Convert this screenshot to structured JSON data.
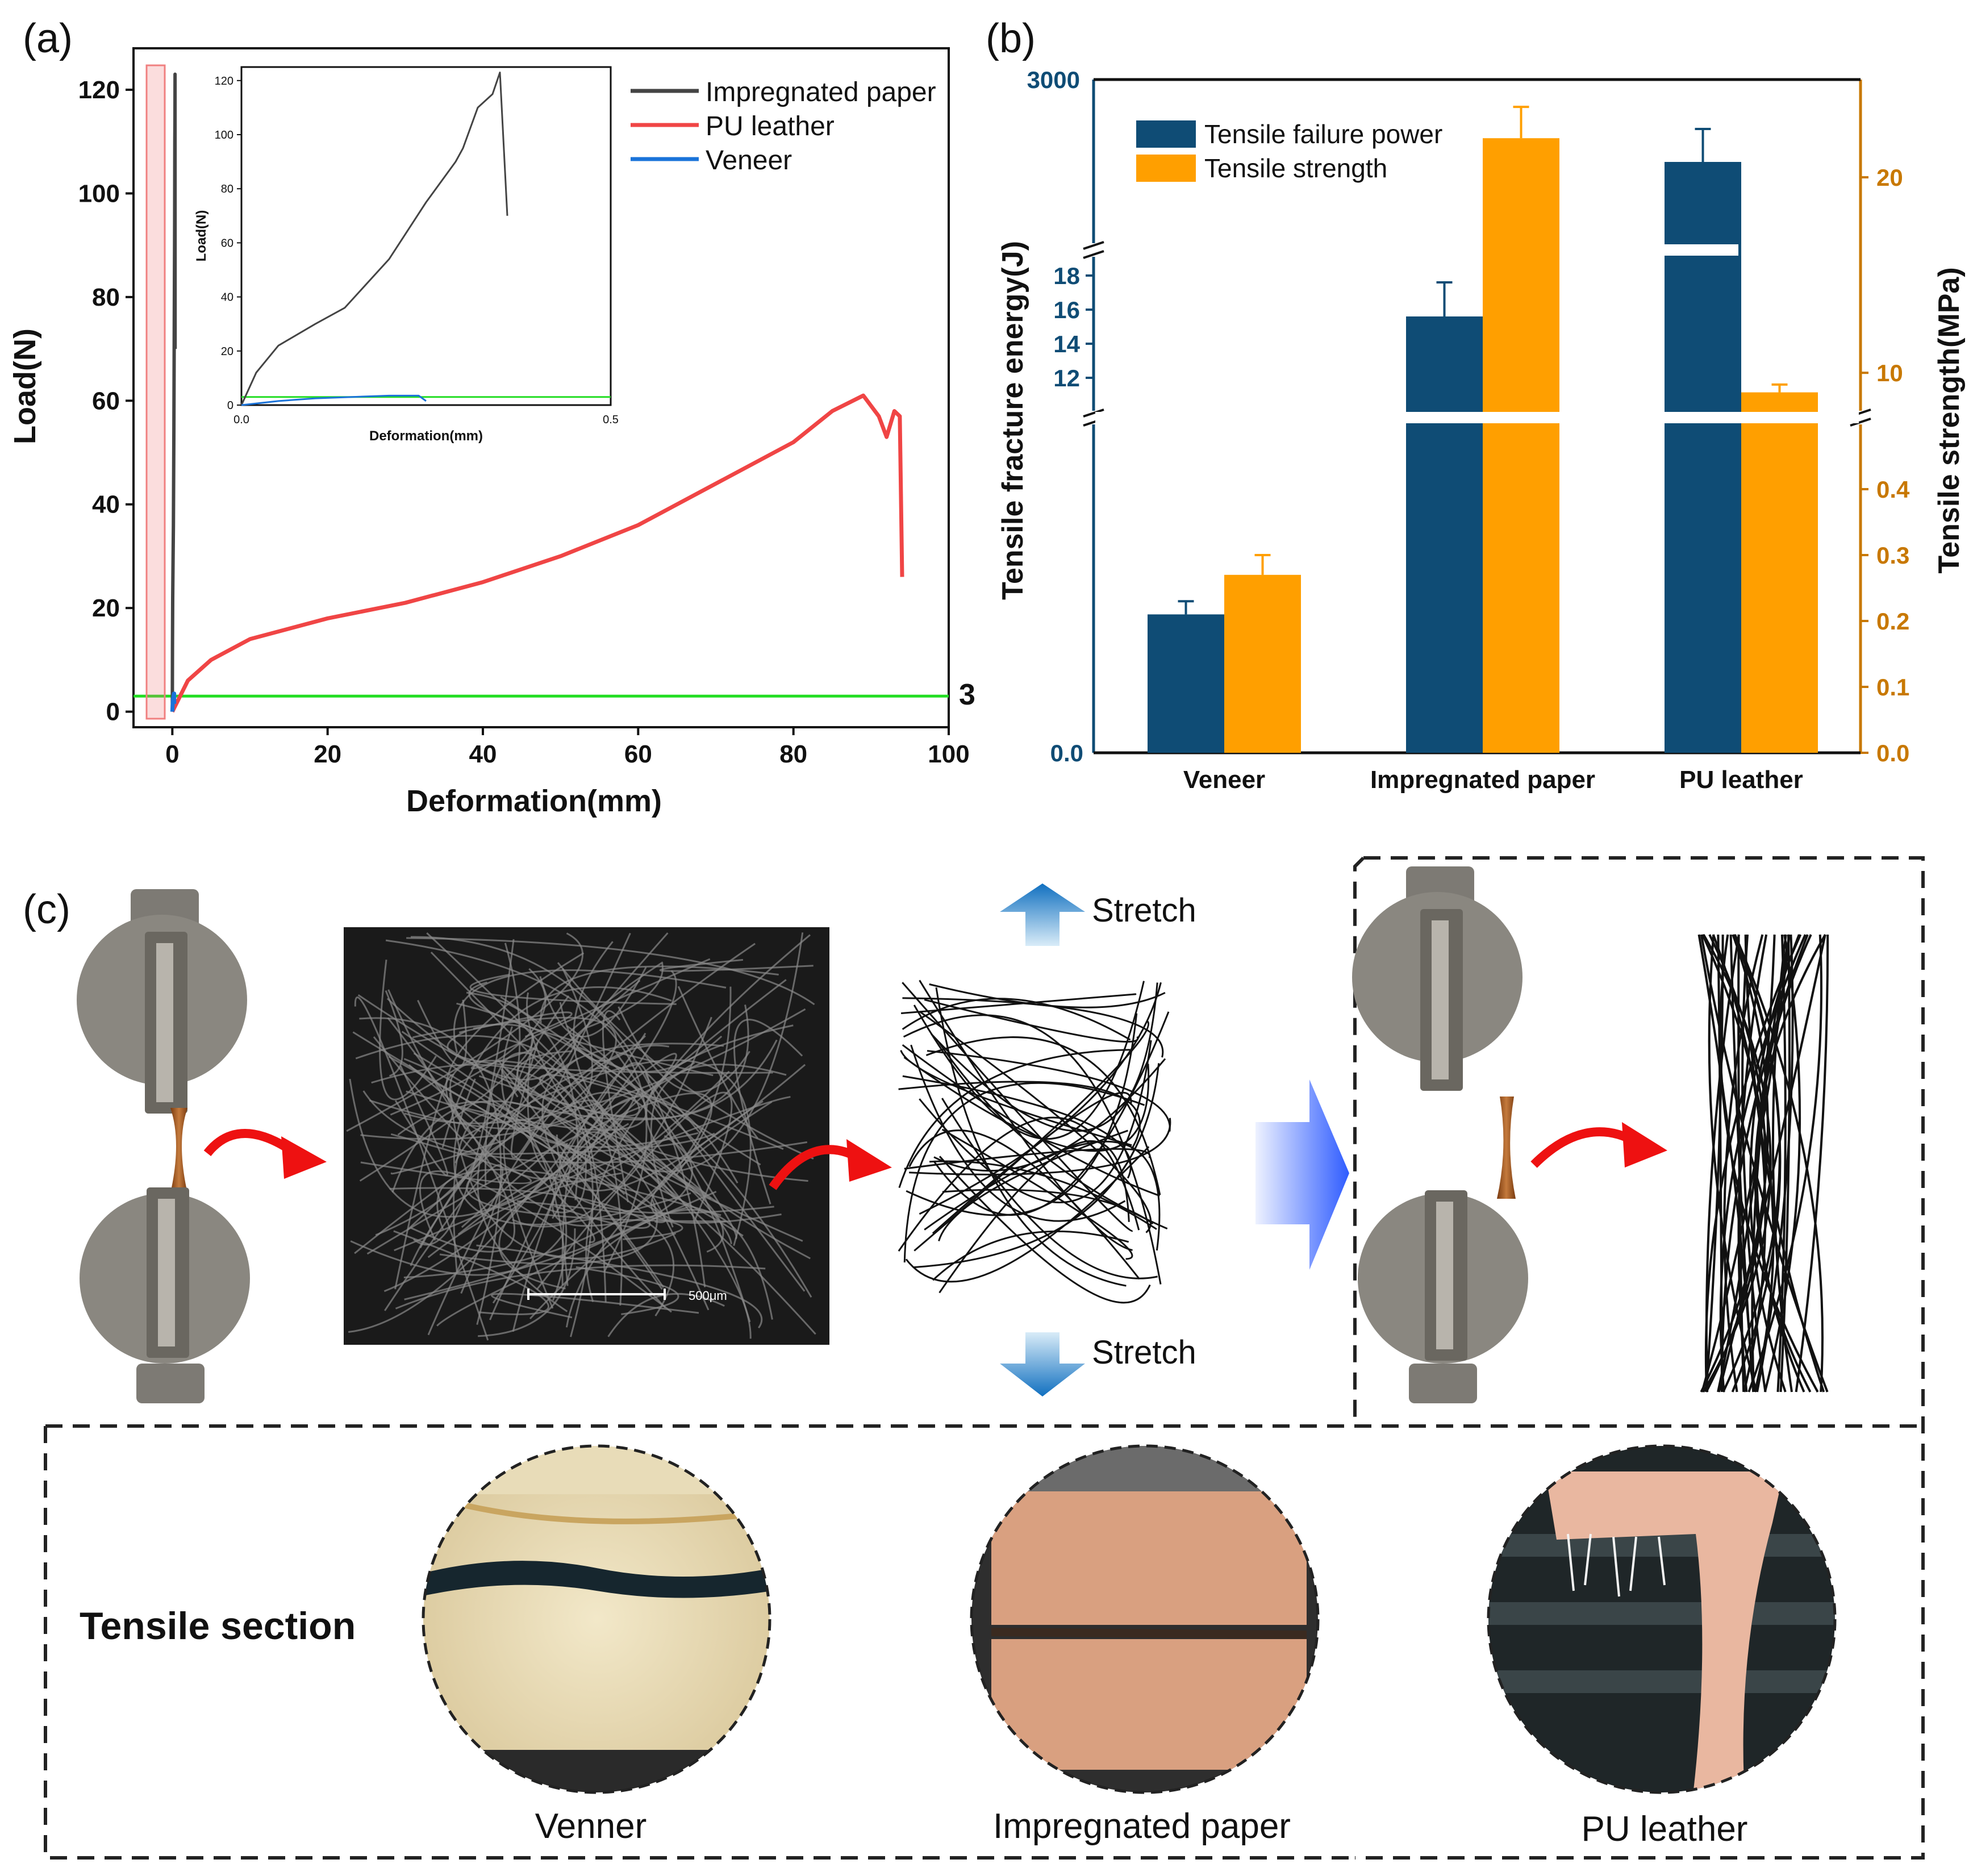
{
  "panel_labels": {
    "a": "(a)",
    "b": "(b)",
    "c": "(c)"
  },
  "colors": {
    "impregnated": "#444444",
    "pu": "#f04545",
    "veneer": "#1a73d9",
    "threshold": "#22dd22",
    "energy_bar": "#0f4c75",
    "strength_bar": "#ff9f00",
    "strength_axis": "#c87800"
  },
  "chart_data": [
    {
      "type": "line",
      "title": "",
      "xlabel": "Deformation(mm)",
      "ylabel": "Load(N)",
      "xlim": [
        -5,
        100
      ],
      "ylim": [
        -3,
        128
      ],
      "x_ticks": [
        "0",
        "20",
        "40",
        "60",
        "80",
        "100"
      ],
      "y_ticks": [
        "0",
        "20",
        "40",
        "60",
        "80",
        "100",
        "120"
      ],
      "threshold": {
        "value": 3,
        "label": "3"
      },
      "legend": {
        "position": "top-right",
        "entries": [
          "Impregnated paper",
          "PU leather",
          "Veneer"
        ]
      },
      "series": [
        {
          "name": "Impregnated paper",
          "x": [
            0,
            0.02,
            0.05,
            0.1,
            0.14,
            0.2,
            0.25,
            0.29,
            0.3,
            0.32,
            0.34,
            0.35,
            0.36
          ],
          "y": [
            0,
            12,
            22,
            30,
            36,
            54,
            75,
            90,
            95,
            110,
            115,
            123,
            70
          ]
        },
        {
          "name": "PU leather",
          "x": [
            0,
            1,
            2,
            5,
            10,
            20,
            30,
            40,
            50,
            60,
            70,
            80,
            85,
            89,
            91,
            92,
            93,
            93.7,
            94
          ],
          "y": [
            0,
            3,
            6,
            10,
            14,
            18,
            21,
            25,
            30,
            36,
            44,
            52,
            58,
            61,
            57,
            53,
            58,
            57,
            26
          ]
        },
        {
          "name": "Veneer",
          "x": [
            0,
            0.05,
            0.1,
            0.15,
            0.2,
            0.24,
            0.25
          ],
          "y": [
            0,
            1.5,
            2.5,
            3,
            3.5,
            3.5,
            1.5
          ]
        }
      ],
      "inset": {
        "xlabel": "Deformation(mm)",
        "ylabel": "Load(N)",
        "xlim": [
          0,
          0.5
        ],
        "ylim": [
          0,
          125
        ],
        "x_ticks": [
          "0.0",
          "0.5"
        ],
        "y_ticks": [
          "0",
          "20",
          "40",
          "60",
          "80",
          "100",
          "120"
        ],
        "threshold": 3
      }
    },
    {
      "type": "bar",
      "categories": [
        "Veneer",
        "Impregnated paper",
        "PU leather"
      ],
      "ylabel_left": "Tensile fracture energy(J)",
      "ylabel_right": "Tensile strength(MPa)",
      "left_ticks_low": [
        "0.0"
      ],
      "left_ticks_mid": [
        "12",
        "14",
        "16",
        "18"
      ],
      "left_ticks_top": [
        "3000"
      ],
      "right_ticks_low": [
        "0.0",
        "0.1",
        "0.2",
        "0.3",
        "0.4"
      ],
      "right_ticks_top": [
        "10",
        "20"
      ],
      "legend": {
        "position": "top-left",
        "entries": [
          "Tensile failure power",
          "Tensile strength"
        ]
      },
      "series": [
        {
          "name": "Tensile failure power",
          "values": [
            0.21,
            15.6,
            2800
          ],
          "errors": [
            0.02,
            2.0,
            80
          ]
        },
        {
          "name": "Tensile strength",
          "values": [
            0.27,
            22,
            9
          ],
          "errors": [
            0.03,
            1.6,
            0.4
          ]
        }
      ]
    }
  ],
  "panel_c": {
    "stretch_top": "Stretch",
    "stretch_bottom": "Stretch",
    "scale_bar": "500μm",
    "tensile_section": "Tensile section",
    "captions": [
      "Venner",
      "Impregnated paper",
      "PU leather"
    ]
  }
}
